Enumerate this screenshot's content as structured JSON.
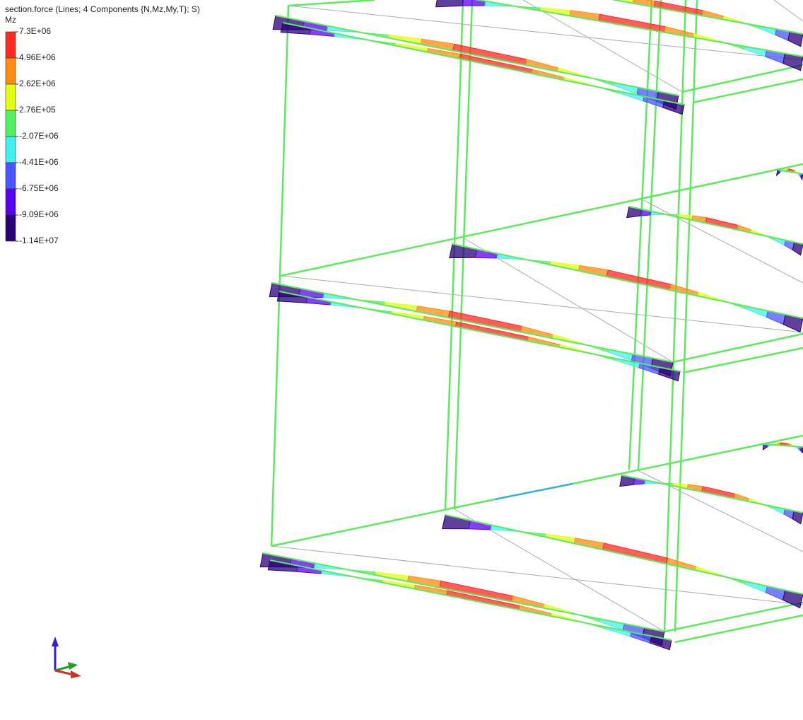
{
  "title": "section.force (Lines; 4 Components {N,Mz,My,T}; S)",
  "component": "Mz",
  "legend": {
    "labels": [
      "7.3E+06",
      "4.96E+06",
      "2.62E+06",
      "2.76E+05",
      "-2.07E+06",
      "-4.41E+06",
      "-6.75E+06",
      "-9.09E+06",
      "-1.14E+07"
    ],
    "colors": [
      "#ff2a20",
      "#ff8c10",
      "#e2ff10",
      "#50f060",
      "#40f0f0",
      "#4a55ff",
      "#5a00f0",
      "#2a0078"
    ]
  }
}
